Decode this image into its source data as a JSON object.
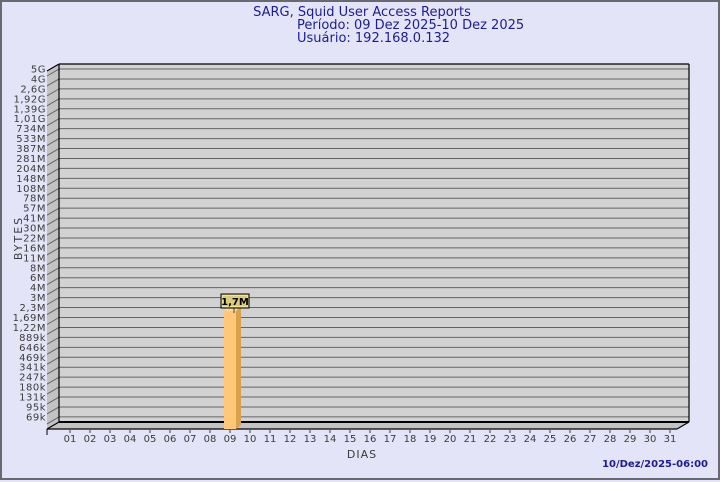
{
  "header": {
    "title": "SARG, Squid User Access Reports",
    "period": "Período: 09 Dez 2025-10 Dez 2025",
    "user": "Usuário: 192.168.0.132"
  },
  "footer": {
    "timestamp": "10/Dez/2025-06:00"
  },
  "chart_data": {
    "type": "bar",
    "title": "SARG, Squid User Access Reports",
    "subtitle": "Período: 09 Dez 2025-10 Dez 2025 — Usuário: 192.168.0.132",
    "xlabel": "DIAS",
    "ylabel": "BYTES",
    "y_scale": "quasi-logarithmic",
    "y_tick_labels": [
      "5G",
      "4G",
      "2,6G",
      "1,92G",
      "1,39G",
      "1,01G",
      "734M",
      "533M",
      "387M",
      "281M",
      "204M",
      "148M",
      "108M",
      "78M",
      "57M",
      "41M",
      "30M",
      "22M",
      "16M",
      "11M",
      "8M",
      "6M",
      "4M",
      "3M",
      "2,3M",
      "1,69M",
      "1,22M",
      "889k",
      "646k",
      "469k",
      "341k",
      "247k",
      "180k",
      "131k",
      "95k",
      "69k"
    ],
    "categories": [
      "01",
      "02",
      "03",
      "04",
      "05",
      "06",
      "07",
      "08",
      "09",
      "10",
      "11",
      "12",
      "13",
      "14",
      "15",
      "16",
      "17",
      "18",
      "19",
      "20",
      "21",
      "22",
      "23",
      "24",
      "25",
      "26",
      "27",
      "28",
      "29",
      "30",
      "31"
    ],
    "values": [
      0,
      0,
      0,
      0,
      0,
      0,
      0,
      0,
      1700000,
      0,
      0,
      0,
      0,
      0,
      0,
      0,
      0,
      0,
      0,
      0,
      0,
      0,
      0,
      0,
      0,
      0,
      0,
      0,
      0,
      0,
      0
    ],
    "bars": [
      {
        "category": "09",
        "value_label": "1,7M",
        "value_bytes": 1700000
      }
    ],
    "legend": null,
    "grid": true
  },
  "colors": {
    "page_bg": "#e4e4f8",
    "page_border": "#696973",
    "plot_bg": "#d2d2d2",
    "wall_bg": "#c3c3c3",
    "gridline": "#646464",
    "frame": "#000000",
    "title_text": "#1c1c94",
    "tick_text": "#3c3c3c",
    "bar_front": "#ffc878",
    "bar_side": "#d9a24a",
    "bar_top": "#ffd79b",
    "value_box_bg": "#d9cb7a",
    "value_box_highlight": "#efe49a",
    "value_box_border": "#000000",
    "timestamp_text": "#1c1c94"
  }
}
